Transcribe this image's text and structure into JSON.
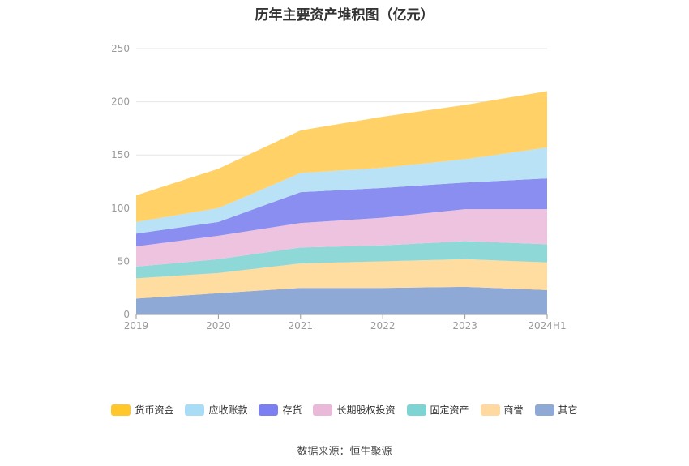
{
  "chart_data": {
    "type": "area",
    "stacked": true,
    "title": "历年主要资产堆积图（亿元）",
    "source": "数据来源：恒生聚源",
    "categories": [
      "2019",
      "2020",
      "2021",
      "2022",
      "2023",
      "2024H1"
    ],
    "ylim": [
      0,
      250
    ],
    "yticks": [
      0,
      50,
      100,
      150,
      200,
      250
    ],
    "grid": true,
    "legend_position": "bottom",
    "series": [
      {
        "name": "其它",
        "color": "#8fa9d6",
        "values": [
          15,
          20,
          25,
          25,
          26,
          23
        ]
      },
      {
        "name": "商誉",
        "color": "#ffdca0",
        "values": [
          19,
          19,
          23,
          25,
          26,
          26
        ]
      },
      {
        "name": "固定资产",
        "color": "#8fd8d8",
        "values": [
          11,
          13,
          15,
          15,
          17,
          17
        ]
      },
      {
        "name": "长期股权投资",
        "color": "#eec3df",
        "values": [
          19,
          22,
          23,
          26,
          30,
          33
        ]
      },
      {
        "name": "存货",
        "color": "#8a8ef0",
        "values": [
          12,
          13,
          29,
          28,
          25,
          29
        ]
      },
      {
        "name": "应收账款",
        "color": "#b9e2f7",
        "values": [
          11,
          13,
          18,
          19,
          22,
          29
        ]
      },
      {
        "name": "货币资金",
        "color": "#ffd166",
        "values": [
          25,
          37,
          40,
          48,
          51,
          53
        ]
      }
    ],
    "legend_order": [
      "货币资金",
      "应收账款",
      "存货",
      "长期股权投资",
      "固定资产",
      "商誉",
      "其它"
    ],
    "legend_colors": {
      "货币资金": "#ffc72c",
      "应收账款": "#a9dcf7",
      "存货": "#7b7ff2",
      "长期股权投资": "#eab8d8",
      "固定资产": "#7ed3d3",
      "商誉": "#ffd9a0",
      "其它": "#8fa9d6"
    }
  }
}
